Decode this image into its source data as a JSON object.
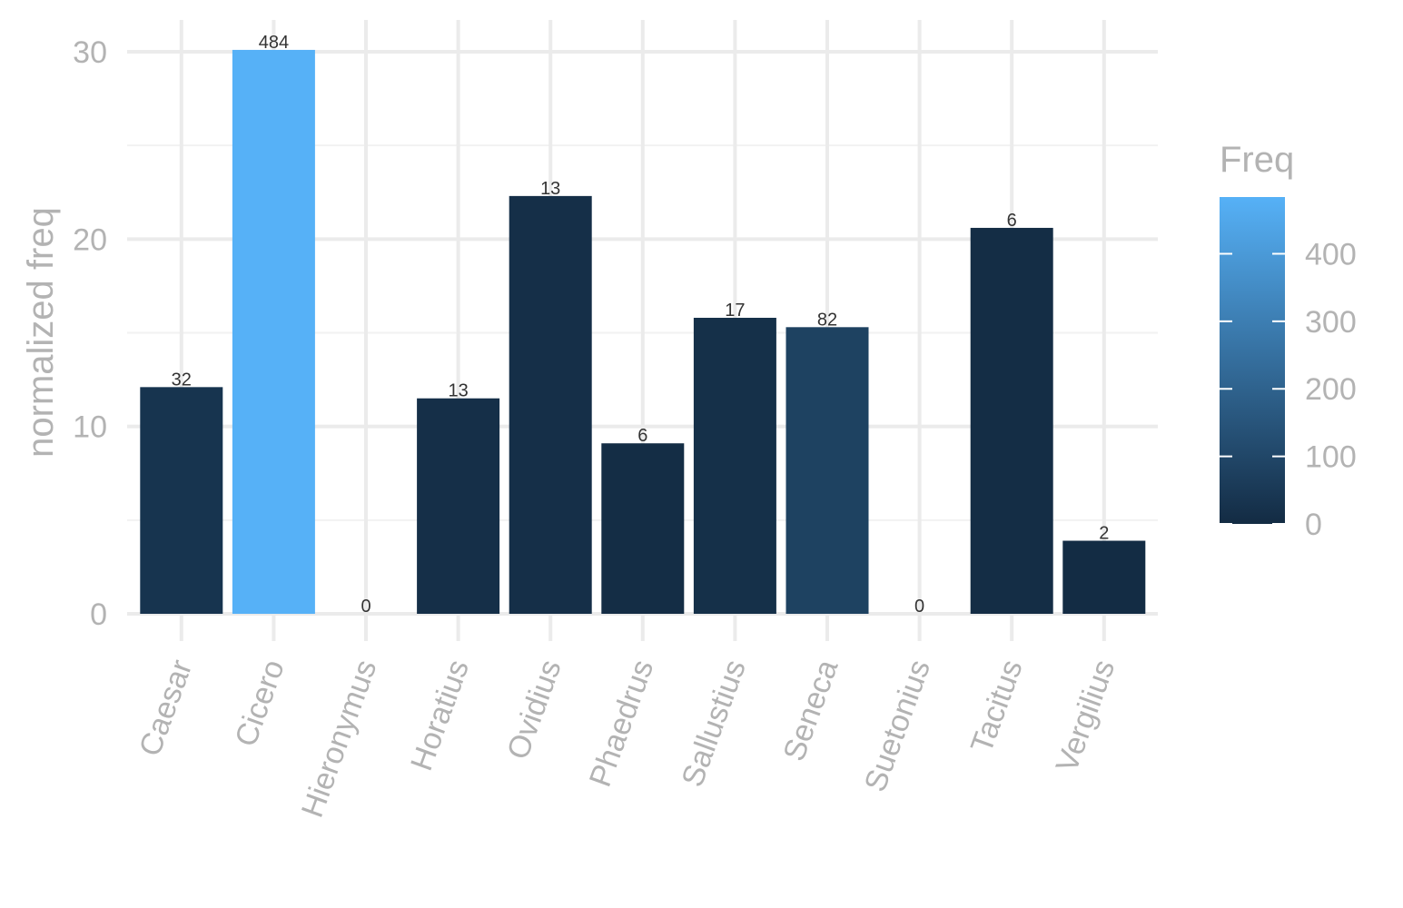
{
  "chart_data": {
    "type": "bar",
    "categories": [
      "Caesar",
      "Cicero",
      "Hieronymus",
      "Horatius",
      "Ovidius",
      "Phaedrus",
      "Sallustius",
      "Seneca",
      "Suetonius",
      "Tacitus",
      "Vergilius"
    ],
    "values": [
      12.1,
      30.1,
      0,
      11.5,
      22.3,
      9.1,
      15.8,
      15.3,
      0,
      20.6,
      3.9
    ],
    "data_labels": [
      "32",
      "484",
      "0",
      "13",
      "13",
      "6",
      "17",
      "82",
      "0",
      "6",
      "2"
    ],
    "freq": [
      32,
      484,
      0,
      13,
      13,
      6,
      17,
      82,
      0,
      6,
      2
    ],
    "xlabel": "",
    "ylabel": "normalized freq",
    "ylim": [
      0,
      30
    ],
    "yticks": [
      0,
      10,
      20,
      30
    ],
    "grid": true,
    "legend": {
      "title": "Freq",
      "placement": "right",
      "range": [
        0,
        484
      ],
      "ticks": [
        0,
        100,
        200,
        300,
        400
      ],
      "color_low": "#132b43",
      "color_high": "#56b1f7"
    }
  }
}
